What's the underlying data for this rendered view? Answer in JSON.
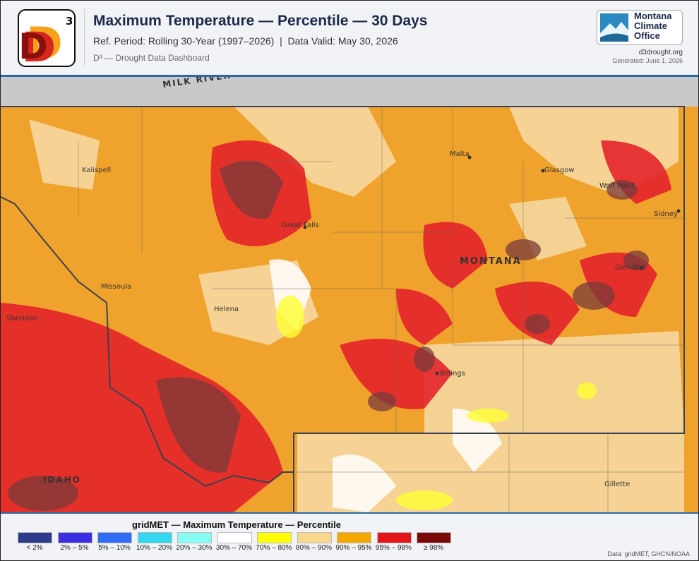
{
  "header": {
    "logo_letter": "D",
    "logo_superscript": "3",
    "title": "Maximum Temperature — Percentile — 30 Days",
    "subtitle": "Ref. Period: Rolling 30-Year (1997–2026)  |  Data Valid: May 30, 2026",
    "dashboard": "D³ — Drought Data Dashboard",
    "partner": [
      "Montana",
      "Climate",
      "Office"
    ],
    "site": "d3drought.org",
    "generated": "Generated: June 1, 2026"
  },
  "map": {
    "labels": [
      "MILK RIVER RIDGE",
      "Kalispell",
      "Great Falls",
      "Missoula",
      "Helena",
      "Malta",
      "Glasgow",
      "Wolf Point",
      "Sidney",
      "Glendive",
      "Billings",
      "Gillette",
      "MONTANA",
      "IDAHO",
      "Sheridan"
    ]
  },
  "legend": {
    "title": "gridMET — Maximum Temperature — Percentile",
    "items": [
      {
        "label": "< 2%",
        "color": "#2e3a8c"
      },
      {
        "label": "2% – 5%",
        "color": "#3b2ee0"
      },
      {
        "label": "5% – 10%",
        "color": "#2f6cf5"
      },
      {
        "label": "10% – 20%",
        "color": "#33d8f0"
      },
      {
        "label": "20% – 30%",
        "color": "#86fff2"
      },
      {
        "label": "30% – 70%",
        "color": "#ffffff"
      },
      {
        "label": "70% – 80%",
        "color": "#ffff00"
      },
      {
        "label": "80% – 90%",
        "color": "#f8d88c"
      },
      {
        "label": "90% – 95%",
        "color": "#f5a800"
      },
      {
        "label": "95% – 98%",
        "color": "#e4141b"
      },
      {
        "label": "≥ 98%",
        "color": "#7a0a0a"
      }
    ],
    "source": "Data: gridMET, GHCN/NOAA"
  }
}
